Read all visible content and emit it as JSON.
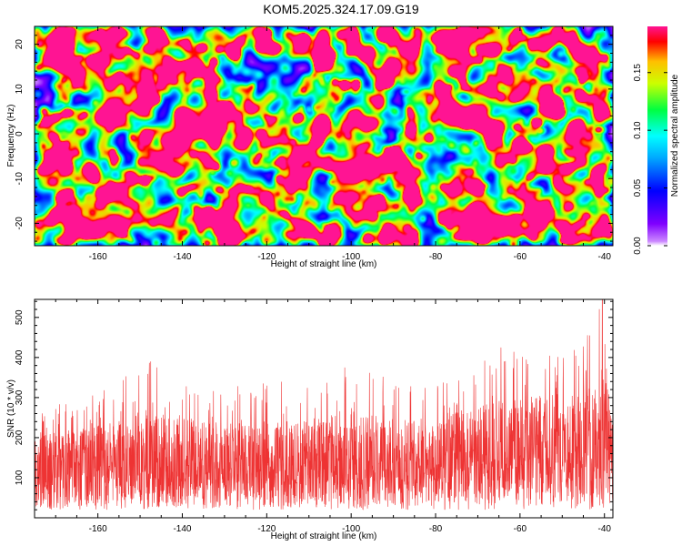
{
  "title": "KOM5.2025.324.17.09.G19",
  "colors": {
    "snr_line": "#ee3333",
    "colormap": [
      "#ffffff",
      "#7f00ff",
      "#0000ff",
      "#00ffff",
      "#00ff00",
      "#ffff00",
      "#ff0000",
      "#ff1493"
    ]
  },
  "chart_data": [
    {
      "type": "heatmap",
      "name": "spectrogram",
      "xlabel": "Height of straight line (km)",
      "ylabel": "Frequency (Hz)",
      "xlim": [
        -175,
        -38
      ],
      "ylim": [
        -25,
        24
      ],
      "xticks": [
        -160,
        -140,
        -120,
        -100,
        -80,
        -60,
        -40
      ],
      "yticks": [
        -20,
        -10,
        0,
        10,
        20
      ],
      "colorbar": {
        "label": "Normalized spectral amplitude",
        "range": [
          0,
          0.19
        ],
        "ticks": [
          "0.00",
          "0.05",
          "0.10",
          "0.15"
        ]
      },
      "hotspots": [
        {
          "x": -41.5,
          "y": 1.0,
          "v": 0.19
        },
        {
          "x": -48.5,
          "y": 0.5,
          "v": 0.17
        },
        {
          "x": -55.5,
          "y": 0.8,
          "v": 0.15
        },
        {
          "x": -133.0,
          "y": -8.5,
          "v": 0.13
        },
        {
          "x": -87.0,
          "y": 9.5,
          "v": 0.11
        },
        {
          "x": -155.0,
          "y": 15.0,
          "v": 0.1
        },
        {
          "x": -110.0,
          "y": 5.5,
          "v": 0.09
        },
        {
          "x": -61.0,
          "y": -8.0,
          "v": 0.09
        }
      ]
    },
    {
      "type": "line",
      "name": "snr",
      "xlabel": "Height of straight line (km)",
      "ylabel": "SNR (10 * v/v)",
      "xlim": [
        -175,
        -38
      ],
      "ylim": [
        0,
        545
      ],
      "xticks": [
        -160,
        -140,
        -120,
        -100,
        -80,
        -60,
        -40
      ],
      "yticks": [
        100,
        200,
        300,
        400,
        500
      ],
      "series_envelope": [
        {
          "x": -175,
          "median": 125,
          "peak": 270
        },
        {
          "x": -160,
          "median": 125,
          "peak": 320
        },
        {
          "x": -148,
          "median": 125,
          "peak": 390
        },
        {
          "x": -130,
          "median": 120,
          "peak": 330
        },
        {
          "x": -110,
          "median": 125,
          "peak": 350
        },
        {
          "x": -100,
          "median": 125,
          "peak": 375
        },
        {
          "x": -80,
          "median": 120,
          "peak": 330
        },
        {
          "x": -78,
          "median": 145,
          "peak": 360
        },
        {
          "x": -60,
          "median": 150,
          "peak": 420
        },
        {
          "x": -45,
          "median": 160,
          "peak": 450
        },
        {
          "x": -40,
          "median": 165,
          "peak": 545
        },
        {
          "x": -38,
          "median": 160,
          "peak": 380
        }
      ],
      "notable_peaks": [
        {
          "x": -147.5,
          "y": 390
        },
        {
          "x": -101.5,
          "y": 375
        },
        {
          "x": -64.5,
          "y": 425
        },
        {
          "x": -43.5,
          "y": 455
        },
        {
          "x": -40.5,
          "y": 545
        }
      ]
    }
  ]
}
